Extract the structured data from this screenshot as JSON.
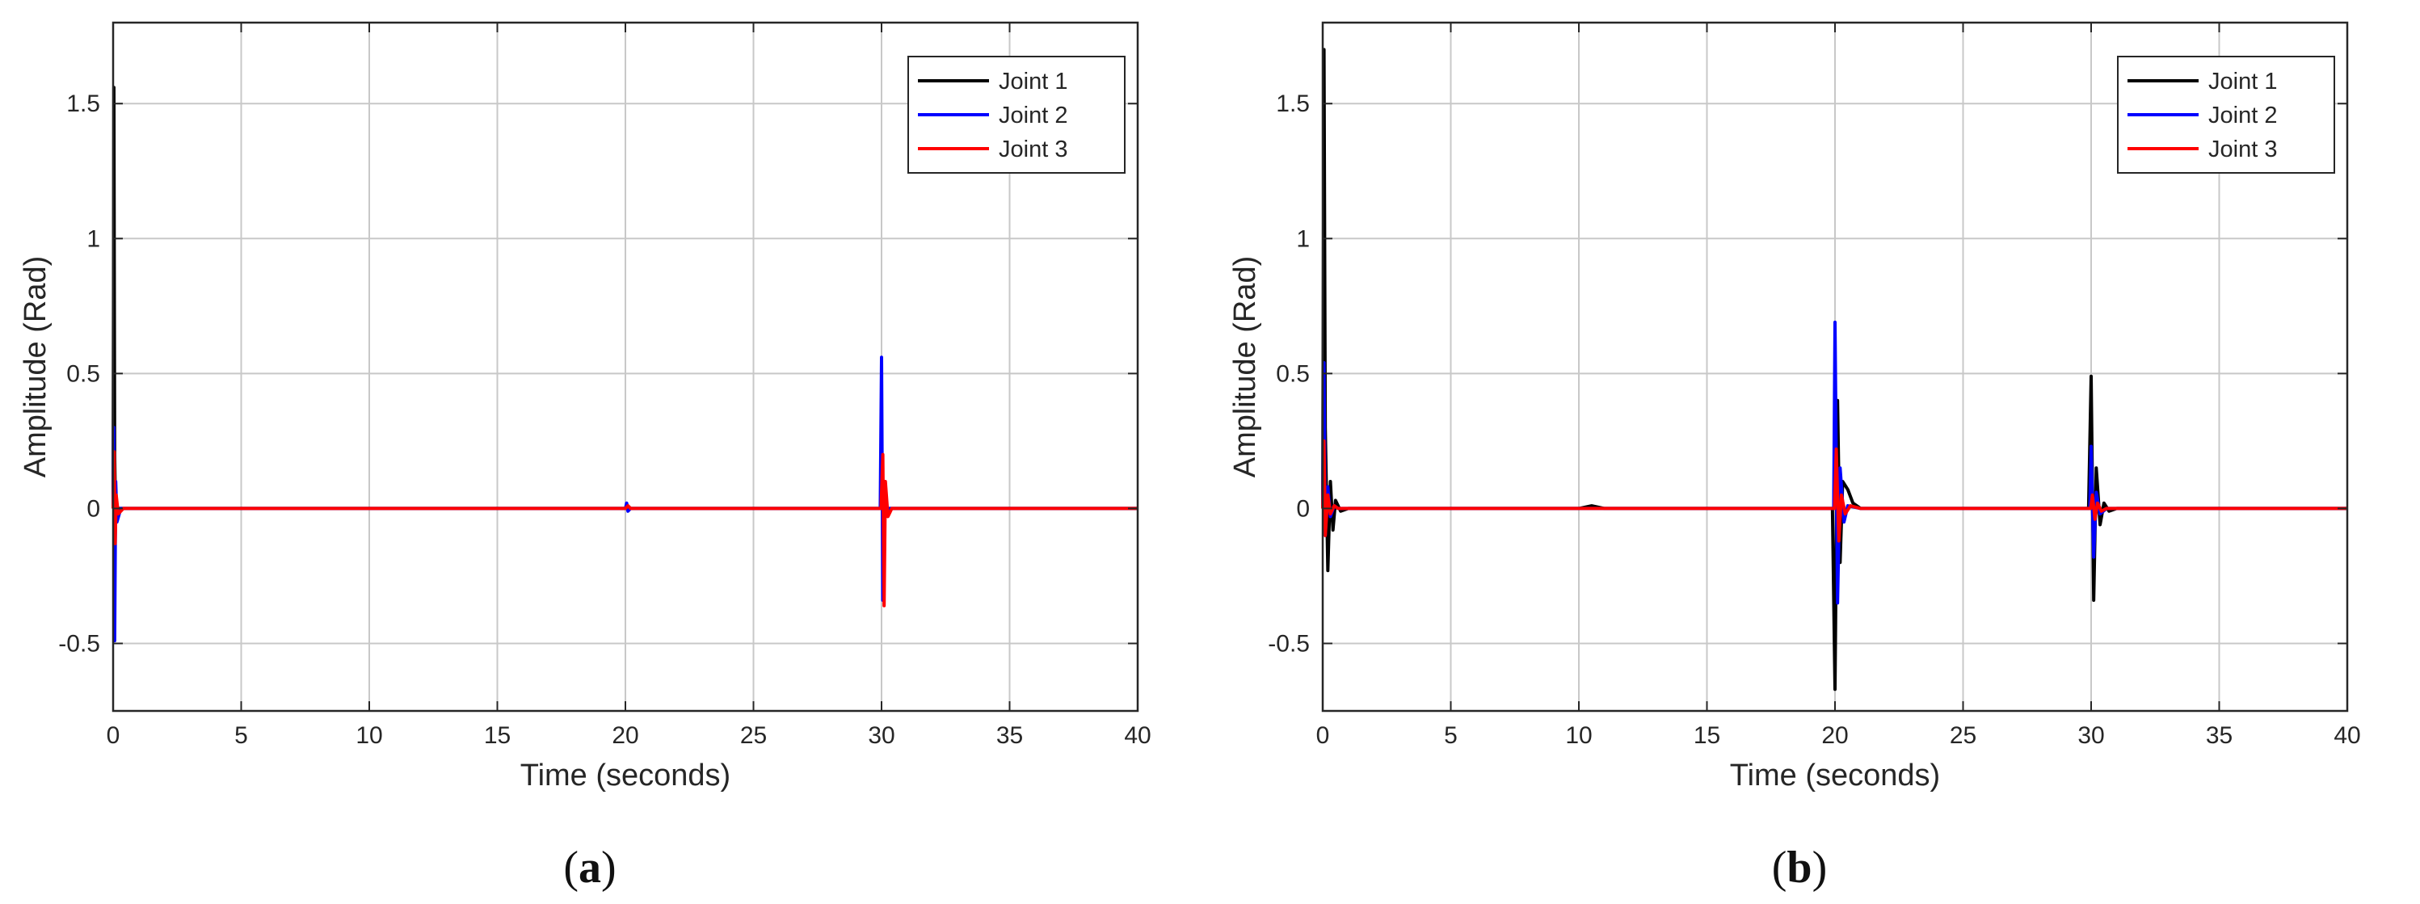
{
  "chart_data": [
    {
      "type": "line",
      "panel_label": "a",
      "xlabel": "Time (seconds)",
      "ylabel": "Amplitude (Rad)",
      "xlim": [
        0,
        40
      ],
      "ylim": [
        -0.75,
        1.8
      ],
      "xticks": [
        "0",
        "5",
        "10",
        "15",
        "20",
        "25",
        "30",
        "35",
        "40"
      ],
      "yticks": [
        "-0.5",
        "0",
        "0.5",
        "1",
        "1.5"
      ],
      "grid": true,
      "legend_position": "top-right",
      "series": [
        {
          "name": "Joint 1",
          "color": "#000000",
          "x": [
            0,
            0.03,
            0.06,
            0.1,
            0.2,
            0.5,
            20.0,
            20.1,
            20.2,
            30.0,
            30.05,
            30.1,
            30.2,
            40
          ],
          "y": [
            0,
            1.56,
            0.2,
            -0.05,
            0.0,
            0,
            0,
            0.01,
            0,
            0,
            0.02,
            -0.02,
            0,
            0
          ]
        },
        {
          "name": "Joint 2",
          "color": "#0000ff",
          "x": [
            0,
            0.03,
            0.06,
            0.1,
            0.15,
            0.3,
            20.0,
            20.05,
            20.1,
            20.2,
            29.95,
            30.0,
            30.05,
            30.1,
            30.15,
            30.3,
            40
          ],
          "y": [
            0,
            0.3,
            -0.49,
            0.1,
            -0.05,
            0,
            0,
            0.02,
            -0.01,
            0,
            0,
            0.56,
            -0.34,
            0.1,
            -0.03,
            0,
            0
          ]
        },
        {
          "name": "Joint 3",
          "color": "#ff0000",
          "x": [
            0,
            0.04,
            0.08,
            0.12,
            0.2,
            0.4,
            20.0,
            20.1,
            20.2,
            29.98,
            30.05,
            30.1,
            30.15,
            30.25,
            30.4,
            40
          ],
          "y": [
            0,
            0.21,
            -0.13,
            0.05,
            -0.02,
            0,
            0,
            0.01,
            0,
            0,
            0.2,
            -0.36,
            0.1,
            -0.03,
            0,
            0
          ]
        }
      ]
    },
    {
      "type": "line",
      "panel_label": "b",
      "xlabel": "Time (seconds)",
      "ylabel": "Amplitude (Rad)",
      "xlim": [
        0,
        40
      ],
      "ylim": [
        -0.75,
        1.8
      ],
      "xticks": [
        "0",
        "5",
        "10",
        "15",
        "20",
        "25",
        "30",
        "35",
        "40"
      ],
      "yticks": [
        "-0.5",
        "0",
        "0.5",
        "1",
        "1.5"
      ],
      "grid": true,
      "legend_position": "top-right",
      "series": [
        {
          "name": "Joint 1",
          "color": "#000000",
          "x": [
            0,
            0.05,
            0.1,
            0.2,
            0.3,
            0.4,
            0.5,
            0.7,
            1.0,
            10.0,
            10.5,
            11.0,
            19.9,
            20.0,
            20.1,
            20.2,
            20.3,
            20.5,
            20.7,
            21.0,
            29.9,
            30.0,
            30.1,
            30.2,
            30.35,
            30.5,
            30.7,
            31.0,
            40
          ],
          "y": [
            0,
            1.7,
            0.3,
            -0.23,
            0.1,
            -0.08,
            0.03,
            -0.01,
            0,
            0,
            0.01,
            0,
            0,
            -0.67,
            0.4,
            -0.2,
            0.1,
            0.07,
            0.02,
            0,
            0,
            0.49,
            -0.34,
            0.15,
            -0.06,
            0.02,
            -0.01,
            0,
            0
          ]
        },
        {
          "name": "Joint 2",
          "color": "#0000ff",
          "x": [
            0,
            0.05,
            0.1,
            0.2,
            0.3,
            0.45,
            0.6,
            1.0,
            19.95,
            20.0,
            20.1,
            20.2,
            20.35,
            20.5,
            21.0,
            29.95,
            30.0,
            30.1,
            30.2,
            30.35,
            30.6,
            40
          ],
          "y": [
            0,
            0.54,
            -0.1,
            0.08,
            -0.03,
            0.01,
            0,
            0,
            0,
            0.69,
            -0.35,
            0.15,
            -0.05,
            0.01,
            0,
            0,
            0.23,
            -0.18,
            0.06,
            -0.02,
            0,
            0
          ]
        },
        {
          "name": "Joint 3",
          "color": "#ff0000",
          "x": [
            0,
            0.05,
            0.1,
            0.2,
            0.3,
            0.45,
            0.6,
            1.0,
            19.98,
            20.05,
            20.15,
            20.25,
            20.4,
            20.6,
            21.0,
            29.98,
            30.05,
            30.15,
            30.25,
            30.4,
            30.6,
            40
          ],
          "y": [
            0,
            0.25,
            -0.1,
            0.05,
            -0.02,
            0.01,
            0,
            0,
            0,
            0.22,
            -0.12,
            0.05,
            -0.02,
            0.01,
            0,
            0,
            0.05,
            -0.04,
            0.02,
            -0.01,
            0,
            0
          ]
        }
      ]
    }
  ]
}
